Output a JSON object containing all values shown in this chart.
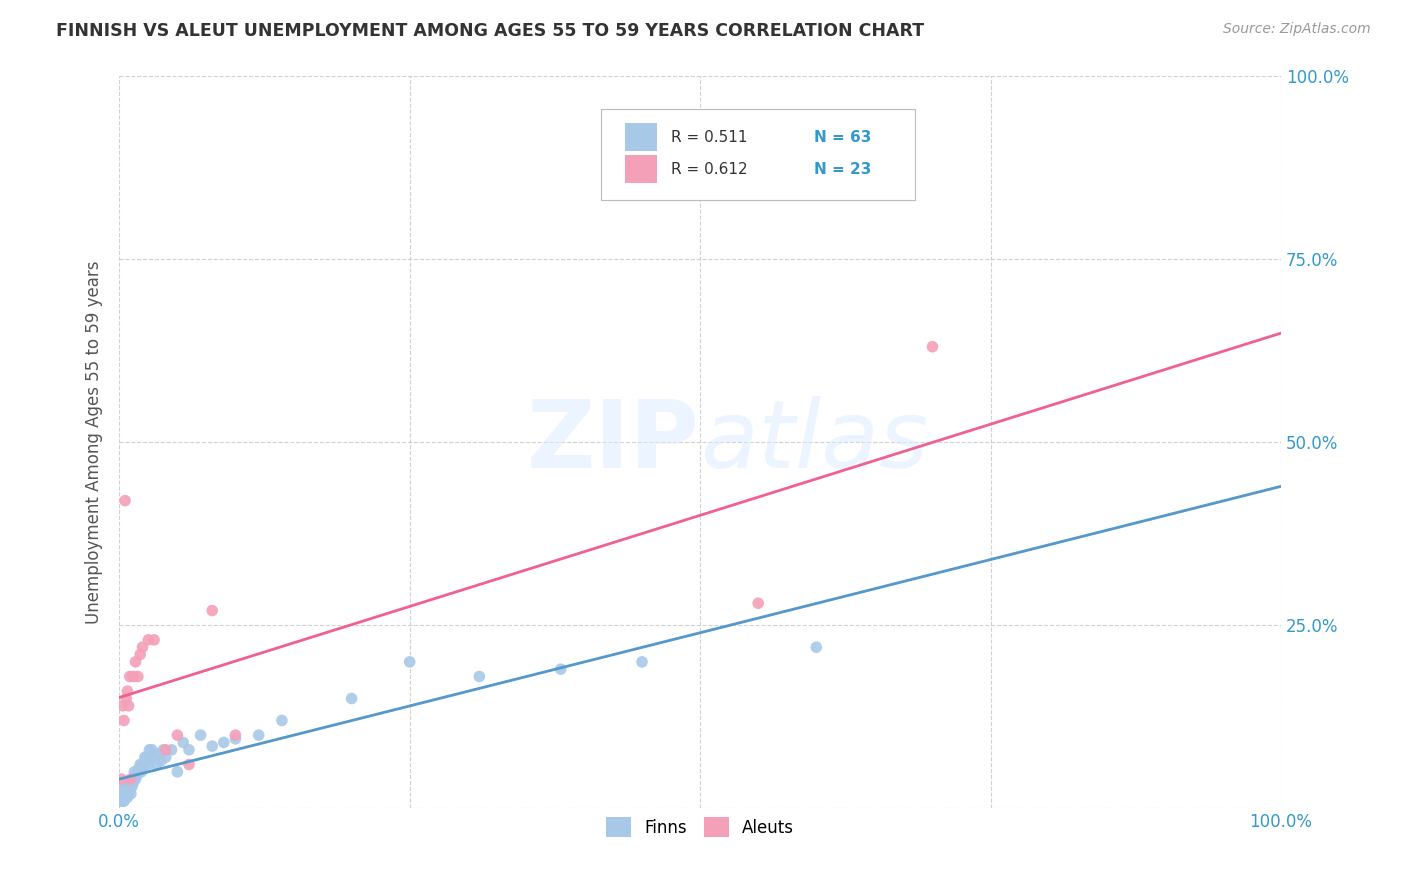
{
  "title": "FINNISH VS ALEUT UNEMPLOYMENT AMONG AGES 55 TO 59 YEARS CORRELATION CHART",
  "source": "Source: ZipAtlas.com",
  "ylabel": "Unemployment Among Ages 55 to 59 years",
  "xlim": [
    0,
    1.0
  ],
  "ylim": [
    0,
    1.0
  ],
  "xticks": [
    0.0,
    0.25,
    0.5,
    0.75,
    1.0
  ],
  "xticklabels": [
    "0.0%",
    "",
    "",
    "",
    "100.0%"
  ],
  "yticks": [
    0.0,
    0.25,
    0.5,
    0.75,
    1.0
  ],
  "yticklabels": [
    "",
    "25.0%",
    "50.0%",
    "75.0%",
    "100.0%"
  ],
  "finn_color": "#a8c8e8",
  "aleut_color": "#f4a0b8",
  "finn_line_color": "#5599cc",
  "aleut_line_color": "#f06090",
  "legend_r_finn": "R = 0.511",
  "legend_n_finn": "N = 63",
  "legend_r_aleut": "R = 0.612",
  "legend_n_aleut": "N = 23",
  "watermark_zip": "ZIP",
  "watermark_atlas": "atlas",
  "finn_x": [
    0.001,
    0.002,
    0.002,
    0.003,
    0.003,
    0.003,
    0.004,
    0.004,
    0.004,
    0.005,
    0.005,
    0.005,
    0.006,
    0.006,
    0.007,
    0.007,
    0.008,
    0.008,
    0.009,
    0.009,
    0.01,
    0.01,
    0.011,
    0.011,
    0.012,
    0.013,
    0.014,
    0.015,
    0.016,
    0.017,
    0.018,
    0.019,
    0.02,
    0.021,
    0.022,
    0.023,
    0.024,
    0.025,
    0.026,
    0.027,
    0.028,
    0.03,
    0.032,
    0.034,
    0.036,
    0.038,
    0.04,
    0.045,
    0.05,
    0.055,
    0.06,
    0.07,
    0.08,
    0.09,
    0.1,
    0.12,
    0.14,
    0.2,
    0.25,
    0.31,
    0.38,
    0.45,
    0.6
  ],
  "finn_y": [
    0.01,
    0.015,
    0.02,
    0.01,
    0.015,
    0.025,
    0.01,
    0.02,
    0.025,
    0.015,
    0.02,
    0.03,
    0.02,
    0.025,
    0.015,
    0.03,
    0.02,
    0.03,
    0.025,
    0.035,
    0.02,
    0.04,
    0.03,
    0.04,
    0.035,
    0.05,
    0.04,
    0.045,
    0.05,
    0.055,
    0.06,
    0.05,
    0.055,
    0.06,
    0.07,
    0.065,
    0.07,
    0.06,
    0.08,
    0.075,
    0.08,
    0.07,
    0.06,
    0.075,
    0.065,
    0.08,
    0.07,
    0.08,
    0.05,
    0.09,
    0.08,
    0.1,
    0.085,
    0.09,
    0.095,
    0.1,
    0.12,
    0.15,
    0.2,
    0.18,
    0.19,
    0.2,
    0.22
  ],
  "aleut_x": [
    0.002,
    0.003,
    0.004,
    0.005,
    0.006,
    0.007,
    0.008,
    0.009,
    0.01,
    0.012,
    0.014,
    0.016,
    0.018,
    0.02,
    0.025,
    0.03,
    0.04,
    0.05,
    0.06,
    0.08,
    0.1,
    0.55,
    0.7
  ],
  "aleut_y": [
    0.04,
    0.14,
    0.12,
    0.42,
    0.15,
    0.16,
    0.14,
    0.18,
    0.04,
    0.18,
    0.2,
    0.18,
    0.21,
    0.22,
    0.23,
    0.23,
    0.08,
    0.1,
    0.06,
    0.27,
    0.1,
    0.28,
    0.63
  ]
}
